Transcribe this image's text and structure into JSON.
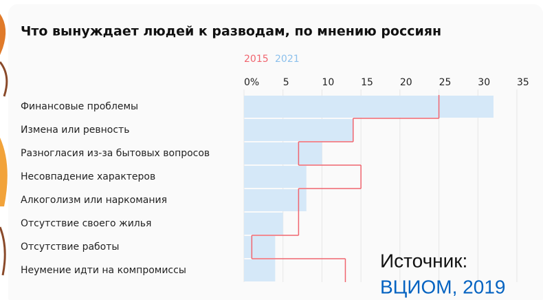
{
  "chart_data": {
    "type": "bar-step",
    "title": "Что вынуждает людей к разводам, по мнению россиян",
    "categories": [
      "Финансовые проблемы",
      "Измена или ревность",
      "Разногласия из-за бытовых вопросов",
      "Несовпадение характеров",
      "Алкоголизм или наркомания",
      "Отсутствие своего жилья",
      "Отсутствие работы",
      "Неумение идти на компромиссы"
    ],
    "series": [
      {
        "name": "2015",
        "color": "#f0646e",
        "values": [
          25,
          14,
          7,
          15,
          7,
          7,
          1,
          13
        ]
      },
      {
        "name": "2021",
        "color": "#d5e8f8",
        "values": [
          32,
          14,
          10,
          8,
          8,
          5,
          4,
          4
        ]
      }
    ],
    "xlim": [
      0,
      35
    ],
    "xticks": [
      {
        "value": 0,
        "label": "0%"
      },
      5,
      10,
      15,
      20,
      25,
      30,
      35
    ],
    "grid": true,
    "annotations": [
      "Источник:",
      "ВЦИОМ, 2019"
    ]
  }
}
